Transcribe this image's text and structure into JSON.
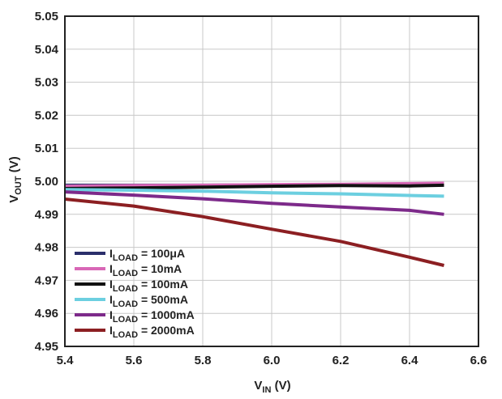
{
  "chart_data": {
    "type": "line",
    "title": "",
    "xlabel": {
      "main": "V",
      "sub": "IN",
      "unit": " (V)"
    },
    "ylabel": {
      "main": "V",
      "sub": "OUT",
      "unit": " (V)"
    },
    "xlim": [
      5.4,
      6.6
    ],
    "ylim": [
      4.95,
      5.05
    ],
    "xticks": [
      "5.4",
      "5.6",
      "5.8",
      "6.0",
      "6.2",
      "6.4",
      "6.6"
    ],
    "yticks": [
      "5.05",
      "5.04",
      "5.03",
      "5.02",
      "5.01",
      "5.00",
      "4.99",
      "4.98",
      "4.97",
      "4.96",
      "4.95"
    ],
    "grid": true,
    "legend_position": "bottom-left",
    "series": [
      {
        "name": "100μA",
        "prefix": "I",
        "sub": "LOAD",
        "label": " = 100μA",
        "color": "#2b2f6b",
        "x": [
          5.4,
          5.6,
          5.8,
          6.0,
          6.2,
          6.4,
          6.5
        ],
        "y": [
          4.9988,
          4.9988,
          4.9988,
          4.9989,
          4.9989,
          4.999,
          4.999
        ]
      },
      {
        "name": "10mA",
        "prefix": "I",
        "sub": "LOAD",
        "label": " = 10mA",
        "color": "#d867b6",
        "x": [
          5.4,
          5.6,
          5.8,
          6.0,
          6.2,
          6.4,
          6.5
        ],
        "y": [
          4.9985,
          4.9987,
          4.9988,
          4.999,
          4.9991,
          4.9993,
          4.9994
        ]
      },
      {
        "name": "100mA",
        "prefix": "I",
        "sub": "LOAD",
        "label": " = 100mA",
        "color": "#111111",
        "x": [
          5.4,
          5.6,
          5.8,
          6.0,
          6.2,
          6.4,
          6.5
        ],
        "y": [
          4.9978,
          4.998,
          4.9982,
          4.9985,
          4.9987,
          4.9986,
          4.9988
        ]
      },
      {
        "name": "500mA",
        "prefix": "I",
        "sub": "LOAD",
        "label": " = 500mA",
        "color": "#6ccfe0",
        "x": [
          5.4,
          5.6,
          5.8,
          6.0,
          6.2,
          6.4,
          6.5
        ],
        "y": [
          4.9975,
          4.9973,
          4.997,
          4.9965,
          4.9962,
          4.9957,
          4.9955
        ]
      },
      {
        "name": "1000mA",
        "prefix": "I",
        "sub": "LOAD",
        "label": " = 1000mA",
        "color": "#7d2a8a",
        "x": [
          5.4,
          5.6,
          5.8,
          6.0,
          6.2,
          6.4,
          6.5
        ],
        "y": [
          4.9968,
          4.9958,
          4.9947,
          4.9933,
          4.9922,
          4.9912,
          4.99
        ]
      },
      {
        "name": "2000mA",
        "prefix": "I",
        "sub": "LOAD",
        "label": " = 2000mA",
        "color": "#8c1f22",
        "x": [
          5.4,
          5.6,
          5.8,
          6.0,
          6.2,
          6.4,
          6.5
        ],
        "y": [
          4.9946,
          4.9925,
          4.9893,
          4.9855,
          4.9818,
          4.977,
          4.9745
        ]
      }
    ]
  }
}
